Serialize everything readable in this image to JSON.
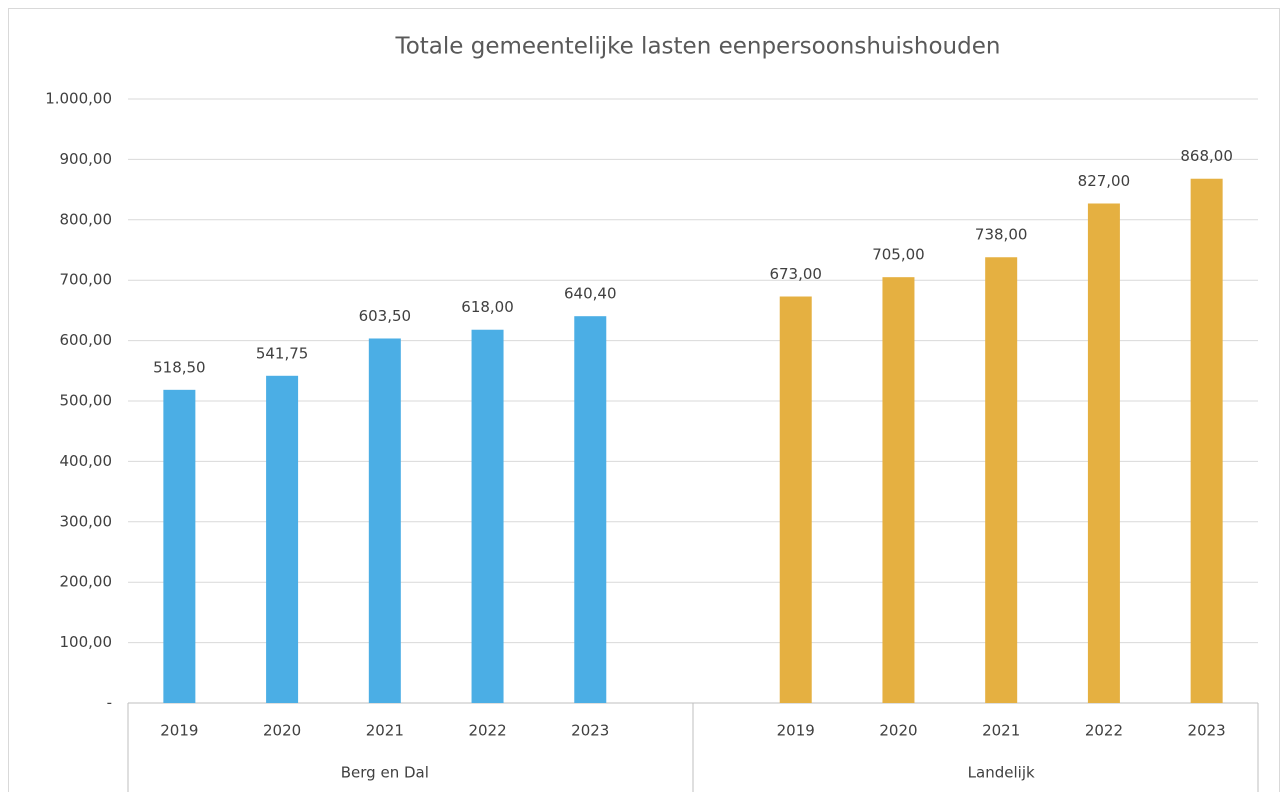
{
  "chart_data": {
    "type": "bar",
    "title": "Totale gemeentelijke lasten eenpersoonshuishouden",
    "groups": [
      {
        "name": "Berg en Dal",
        "color": "#4baee5",
        "categories": [
          "2019",
          "2020",
          "2021",
          "2022",
          "2023"
        ],
        "values": [
          518.5,
          541.75,
          603.5,
          618,
          640.4
        ],
        "value_labels": [
          "518,50",
          "541,75",
          "603,50",
          "618,00",
          "640,40"
        ]
      },
      {
        "name": "Landelijk",
        "color": "#e5b041",
        "categories": [
          "2019",
          "2020",
          "2021",
          "2022",
          "2023"
        ],
        "values": [
          673,
          705,
          738,
          827,
          868
        ],
        "value_labels": [
          "673,00",
          "705,00",
          "738,00",
          "827,00",
          "868,00"
        ]
      }
    ],
    "ylim": [
      0,
      1000
    ],
    "yticks": [
      {
        "value": 0,
        "label": "-"
      },
      {
        "value": 100,
        "label": "100,00"
      },
      {
        "value": 200,
        "label": "200,00"
      },
      {
        "value": 300,
        "label": "300,00"
      },
      {
        "value": 400,
        "label": "400,00"
      },
      {
        "value": 500,
        "label": "500,00"
      },
      {
        "value": 600,
        "label": "600,00"
      },
      {
        "value": 700,
        "label": "700,00"
      },
      {
        "value": 800,
        "label": "800,00"
      },
      {
        "value": 900,
        "label": "900,00"
      },
      {
        "value": 1000,
        "label": "1.000,00"
      }
    ],
    "grid": true
  }
}
